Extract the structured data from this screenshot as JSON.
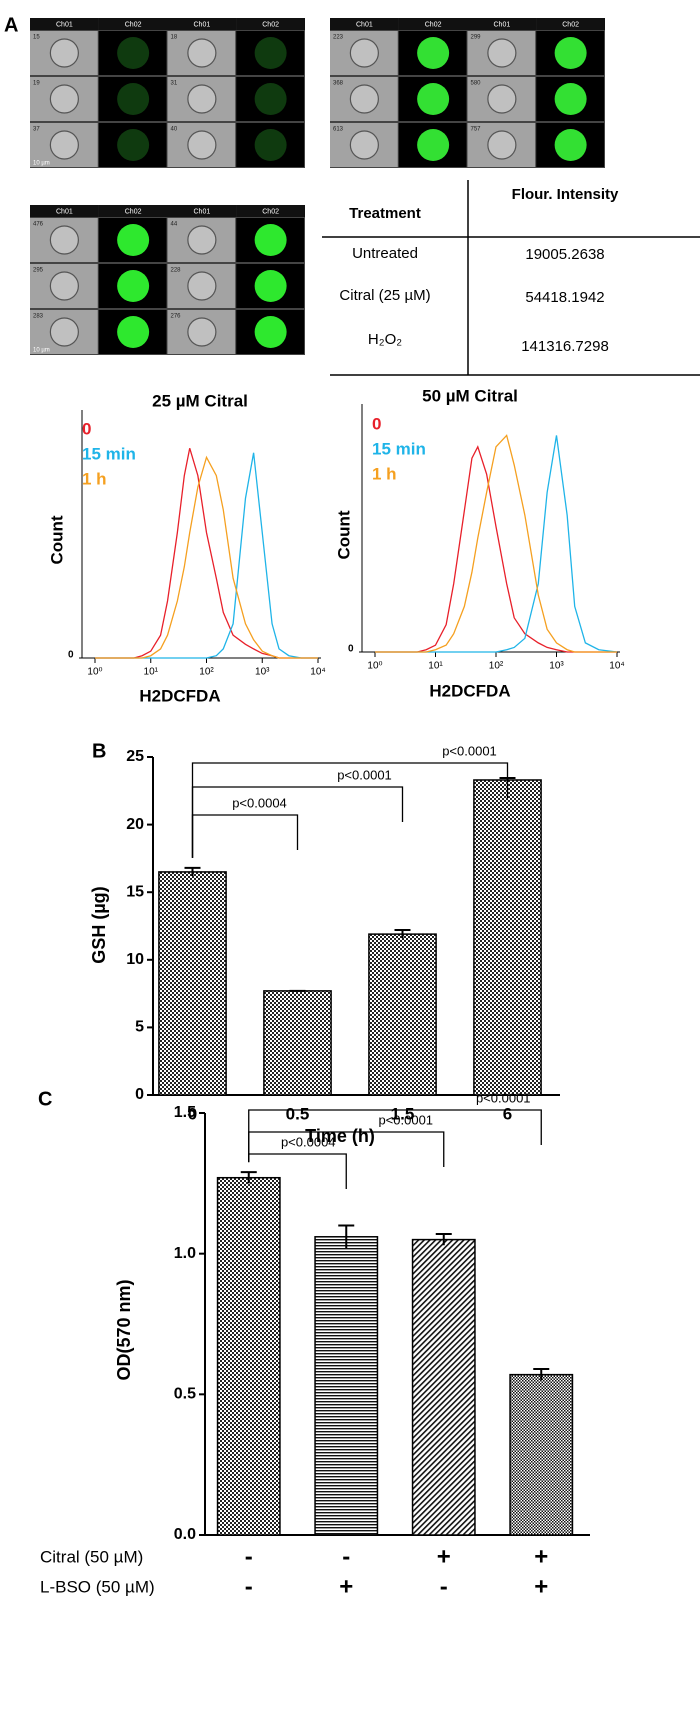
{
  "panel_labels": [
    "A",
    "B",
    "C"
  ],
  "image_panels": [
    {
      "channels": [
        "Ch01",
        "Ch02",
        "Ch01",
        "Ch02"
      ],
      "cells": [
        [
          "15",
          "18"
        ],
        [
          "19",
          "31"
        ],
        [
          "37",
          "40"
        ]
      ],
      "scale_label": "10 µm",
      "color": "#0f3a0f"
    },
    {
      "channels": [
        "Ch01",
        "Ch02",
        "Ch01",
        "Ch02"
      ],
      "cells": [
        [
          "223",
          "299"
        ],
        [
          "368",
          "580"
        ],
        [
          "613",
          "757"
        ]
      ],
      "color": "#33e033"
    },
    {
      "channels": [
        "Ch01",
        "Ch02",
        "Ch01",
        "Ch02"
      ],
      "cells": [
        [
          "476",
          "44"
        ],
        [
          "295",
          "228"
        ],
        [
          "283",
          "276"
        ]
      ],
      "scale_label": "10 µm",
      "color": "#2ee82e"
    }
  ],
  "table": {
    "header": [
      "Treatment",
      "Flour. Intensity"
    ],
    "rows": [
      [
        "Untreated",
        "19005.2638"
      ],
      [
        "Citral (25 µM)",
        "54418.1942"
      ],
      [
        "H₂O₂",
        "141316.7298"
      ]
    ]
  },
  "chart_data": [
    {
      "type": "line",
      "title": "25 µM Citral",
      "x_label": "H2DCFDA",
      "y_label": "Count",
      "log_x": true,
      "x": [
        1,
        2,
        3,
        5,
        7,
        10,
        15,
        20,
        30,
        40,
        50,
        70,
        100,
        150,
        200,
        300,
        500,
        700,
        1000,
        1500,
        2000,
        3000,
        5000,
        10000
      ],
      "series": [
        {
          "name": "0",
          "color": "#e8202a",
          "values": [
            0,
            0,
            0,
            0,
            1,
            3,
            10,
            25,
            55,
            80,
            92,
            80,
            55,
            35,
            20,
            10,
            6,
            4,
            2,
            1,
            0,
            0,
            0,
            0
          ]
        },
        {
          "name": "15 min",
          "color": "#1fb4e8",
          "values": [
            0,
            0,
            0,
            0,
            0,
            0,
            0,
            0,
            0,
            0,
            0,
            0,
            0,
            1,
            4,
            15,
            70,
            90,
            55,
            15,
            4,
            1,
            0,
            0
          ]
        },
        {
          "name": "1 h",
          "color": "#f5a020",
          "values": [
            0,
            0,
            0,
            0,
            0,
            1,
            4,
            10,
            25,
            40,
            55,
            75,
            88,
            80,
            65,
            35,
            15,
            8,
            3,
            1,
            0,
            0,
            0,
            0
          ]
        }
      ],
      "xlim": [
        1,
        10000
      ],
      "xticks": [
        {
          "value": 1,
          "label": "10⁰"
        },
        {
          "value": 10,
          "label": "10¹"
        },
        {
          "value": 100,
          "label": "10²"
        },
        {
          "value": 1000,
          "label": "10³"
        },
        {
          "value": 10000,
          "label": "10⁴"
        }
      ],
      "ylim": [
        0,
        100
      ],
      "yticks": [
        0
      ]
    },
    {
      "type": "line",
      "title": "50 µM Citral",
      "x_label": "H2DCFDA",
      "y_label": "Count",
      "log_x": true,
      "x": [
        1,
        2,
        3,
        5,
        7,
        10,
        15,
        20,
        30,
        40,
        50,
        70,
        100,
        150,
        200,
        300,
        500,
        700,
        1000,
        1500,
        2000,
        3000,
        5000,
        10000
      ],
      "series": [
        {
          "name": "0",
          "color": "#e8202a",
          "values": [
            0,
            0,
            0,
            0,
            1,
            3,
            12,
            30,
            62,
            85,
            90,
            78,
            55,
            30,
            15,
            8,
            4,
            2,
            1,
            0,
            0,
            0,
            0,
            0
          ]
        },
        {
          "name": "15 min",
          "color": "#1fb4e8",
          "values": [
            0,
            0,
            0,
            0,
            0,
            0,
            0,
            0,
            0,
            0,
            0,
            0,
            0,
            1,
            2,
            6,
            30,
            70,
            95,
            60,
            20,
            4,
            1,
            0
          ]
        },
        {
          "name": "1 h",
          "color": "#f5a020",
          "values": [
            0,
            0,
            0,
            0,
            0,
            1,
            3,
            8,
            20,
            35,
            50,
            70,
            90,
            95,
            82,
            60,
            25,
            10,
            4,
            1,
            0,
            0,
            0,
            0
          ]
        }
      ],
      "xlim": [
        1,
        10000
      ],
      "xticks": [
        {
          "value": 1,
          "label": "10⁰"
        },
        {
          "value": 10,
          "label": "10¹"
        },
        {
          "value": 100,
          "label": "10²"
        },
        {
          "value": 1000,
          "label": "10³"
        },
        {
          "value": 10000,
          "label": "10⁴"
        }
      ],
      "ylim": [
        0,
        100
      ],
      "yticks": [
        0
      ]
    },
    {
      "type": "bar",
      "x_label": "Time (h)",
      "y_label": "GSH (µg)",
      "pattern": "checker",
      "categories": [
        "0",
        "0.5",
        "1.5",
        "6"
      ],
      "values": [
        16.5,
        7.7,
        11.9,
        23.3
      ],
      "errors": [
        0.3,
        0,
        0.3,
        0.15
      ],
      "ylim": [
        0,
        25
      ],
      "yticks": [
        0,
        5,
        10,
        15,
        20,
        25
      ],
      "comparisons": [
        {
          "between": [
            0,
            1
          ],
          "label": "p<0.0004"
        },
        {
          "between": [
            0,
            2
          ],
          "label": "p<0.0001"
        },
        {
          "between": [
            0,
            3
          ],
          "label": "p<0.0001"
        }
      ]
    },
    {
      "type": "bar",
      "y_label": "OD(570 nm)",
      "patterns": [
        "checker",
        "horizontal",
        "diagonal",
        "fine-checker"
      ],
      "factors": [
        {
          "name": "Citral (50 µM)",
          "levels": [
            "-",
            "-",
            "+",
            "+"
          ]
        },
        {
          "name": "L-BSO (50 µM)",
          "levels": [
            "-",
            "+",
            "-",
            "+"
          ]
        }
      ],
      "values": [
        1.27,
        1.06,
        1.05,
        0.57
      ],
      "errors": [
        0.02,
        0.04,
        0.02,
        0.02
      ],
      "ylim": [
        0,
        1.5
      ],
      "yticks": [
        {
          "value": 0,
          "label": "0.0"
        },
        {
          "value": 0.5,
          "label": "0.5"
        },
        {
          "value": 1,
          "label": "1.0"
        },
        {
          "value": 1.5,
          "label": "1.5"
        }
      ],
      "comparisons": [
        {
          "between": [
            0,
            1
          ],
          "label": "p<0.0004"
        },
        {
          "between": [
            0,
            2
          ],
          "label": "p<0.0001"
        },
        {
          "between": [
            0,
            3
          ],
          "label": "p<0.0001"
        }
      ]
    }
  ]
}
